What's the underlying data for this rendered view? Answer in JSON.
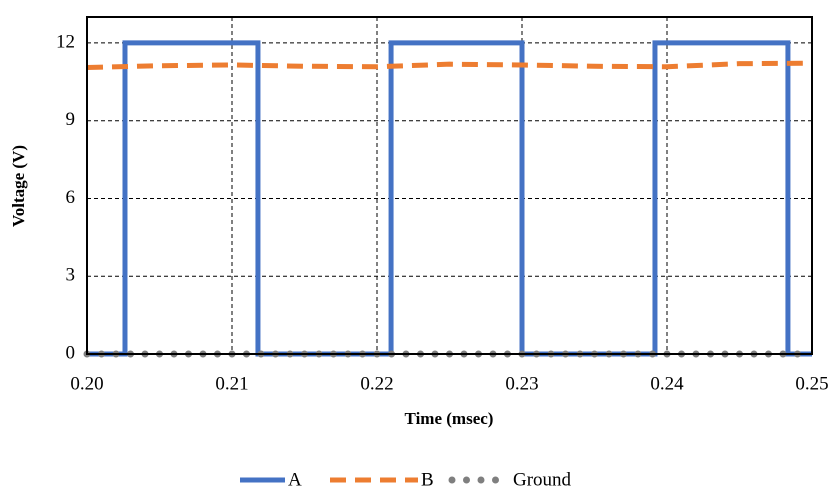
{
  "chart_data": {
    "type": "line",
    "xlabel": "Time (msec)",
    "ylabel": "Voltage (V)",
    "xlim": [
      0.2,
      0.25
    ],
    "xticks": [
      {
        "value": 0.2,
        "label": "0.20"
      },
      0.21,
      0.22,
      0.23,
      0.24,
      0.25
    ],
    "ylim": [
      0,
      13
    ],
    "yticks": [
      0,
      3,
      6,
      9,
      12
    ],
    "grid": true,
    "legend": "bottom",
    "series": [
      {
        "name": "A",
        "color": "#4472c4",
        "style": "solid",
        "x": [
          0.2,
          0.20262,
          0.20262,
          0.21179,
          0.21179,
          0.22097,
          0.22097,
          0.23,
          0.23,
          0.23917,
          0.23917,
          0.24834,
          0.24834,
          0.25
        ],
        "values": [
          0,
          0,
          12,
          12,
          0,
          0,
          12,
          12,
          0,
          0,
          12,
          12,
          0,
          0
        ]
      },
      {
        "name": "B",
        "color": "#ed7d31",
        "style": "dashed",
        "x": [
          0.2,
          0.205,
          0.21,
          0.215,
          0.22,
          0.225,
          0.23,
          0.235,
          0.24,
          0.245,
          0.25
        ],
        "values": [
          11.05,
          11.12,
          11.15,
          11.1,
          11.08,
          11.18,
          11.15,
          11.1,
          11.08,
          11.2,
          11.22
        ]
      },
      {
        "name": "Ground",
        "color": "#7f7f7f",
        "style": "dotted",
        "x": [
          0.2,
          0.201,
          0.202,
          0.203,
          0.204,
          0.205,
          0.206,
          0.207,
          0.208,
          0.209,
          0.21,
          0.211,
          0.212,
          0.213,
          0.214,
          0.215,
          0.216,
          0.217,
          0.218,
          0.219,
          0.22,
          0.221,
          0.222,
          0.223,
          0.224,
          0.225,
          0.226,
          0.227,
          0.228,
          0.229,
          0.23,
          0.231,
          0.232,
          0.233,
          0.234,
          0.235,
          0.236,
          0.237,
          0.238,
          0.239,
          0.24,
          0.241,
          0.242,
          0.243,
          0.244,
          0.245,
          0.246,
          0.247,
          0.248,
          0.249,
          0.25
        ],
        "values": [
          0,
          0,
          0,
          0,
          0,
          0,
          0,
          0,
          0,
          0,
          0,
          0,
          0,
          0,
          0,
          0,
          0,
          0,
          0,
          0,
          0,
          0,
          0,
          0,
          0,
          0,
          0,
          0,
          0,
          0,
          0,
          0,
          0,
          0,
          0,
          0,
          0,
          0,
          0,
          0,
          0,
          0,
          0,
          0,
          0,
          0,
          0,
          0,
          0,
          0,
          0
        ]
      }
    ]
  }
}
